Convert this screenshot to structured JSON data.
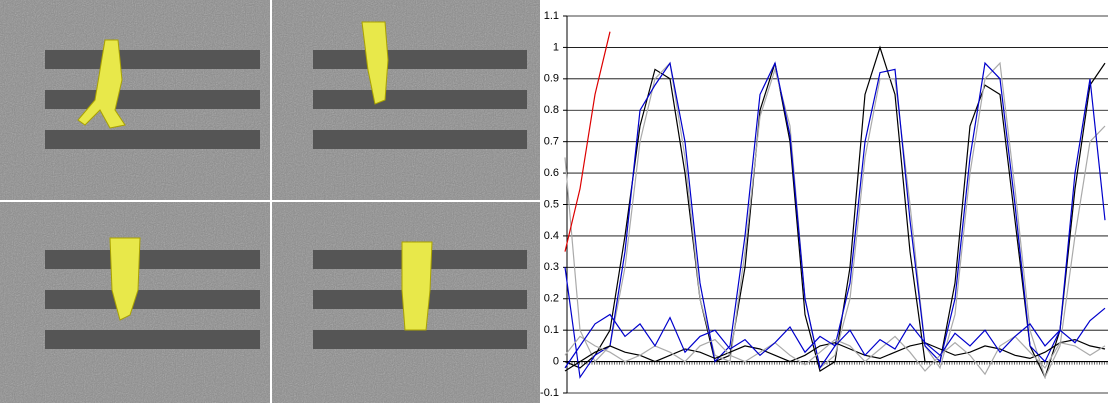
{
  "chart_data": {
    "type": "line",
    "ylim": [
      -0.1,
      1.1
    ],
    "yticks": [
      -0.1,
      0,
      0.1,
      0.2,
      0.3,
      0.4,
      0.5,
      0.6,
      0.7,
      0.8,
      0.9,
      1,
      1.1
    ],
    "grid": true,
    "series": [
      {
        "color": "#000000",
        "values": [
          0.0,
          -0.02,
          0.02,
          0.1,
          0.4,
          0.75,
          0.93,
          0.9,
          0.6,
          0.2,
          0.0,
          0.02,
          0.3,
          0.8,
          0.95,
          0.7,
          0.15,
          -0.03,
          0.0,
          0.3,
          0.85,
          1.0,
          0.85,
          0.35,
          0.0,
          0.0,
          0.25,
          0.75,
          0.88,
          0.85,
          0.45,
          0.05,
          -0.05,
          0.1,
          0.55,
          0.88,
          0.95
        ]
      },
      {
        "color": "#aaaaaa",
        "values": [
          0.65,
          0.1,
          0.0,
          0.05,
          0.3,
          0.7,
          0.9,
          0.95,
          0.65,
          0.2,
          0.02,
          0.0,
          0.35,
          0.78,
          0.93,
          0.75,
          0.2,
          -0.02,
          0.02,
          0.2,
          0.65,
          0.9,
          0.9,
          0.5,
          0.05,
          -0.02,
          0.15,
          0.6,
          0.9,
          0.95,
          0.55,
          0.1,
          -0.05,
          0.05,
          0.4,
          0.7,
          0.75
        ]
      },
      {
        "color": "#0000cc",
        "values": [
          0.3,
          -0.05,
          0.02,
          0.05,
          0.35,
          0.8,
          0.88,
          0.95,
          0.7,
          0.25,
          0.0,
          0.05,
          0.4,
          0.85,
          0.95,
          0.72,
          0.2,
          -0.02,
          0.05,
          0.25,
          0.7,
          0.92,
          0.93,
          0.45,
          0.05,
          0.0,
          0.2,
          0.65,
          0.95,
          0.9,
          0.5,
          0.05,
          0.0,
          0.1,
          0.6,
          0.9,
          0.45
        ]
      },
      {
        "color": "#000000",
        "values": [
          -0.03,
          0.0,
          0.03,
          0.05,
          0.03,
          0.02,
          0.0,
          0.02,
          0.04,
          0.03,
          0.01,
          0.03,
          0.05,
          0.04,
          0.02,
          0.0,
          0.02,
          0.05,
          0.06,
          0.04,
          0.02,
          0.01,
          0.03,
          0.05,
          0.06,
          0.04,
          0.02,
          0.03,
          0.05,
          0.04,
          0.02,
          0.01,
          0.03,
          0.06,
          0.07,
          0.05,
          0.04
        ]
      },
      {
        "color": "#aaaaaa",
        "values": [
          0.02,
          0.08,
          0.05,
          0.03,
          0.0,
          0.02,
          0.05,
          0.03,
          0.0,
          0.05,
          0.07,
          0.02,
          0.0,
          0.03,
          0.06,
          0.02,
          -0.01,
          0.03,
          0.07,
          0.05,
          0.0,
          0.04,
          0.08,
          0.03,
          -0.03,
          0.02,
          0.06,
          0.02,
          -0.04,
          0.05,
          0.08,
          0.03,
          -0.02,
          0.06,
          0.05,
          0.02,
          0.05
        ]
      },
      {
        "color": "#0000cc",
        "values": [
          -0.02,
          0.05,
          0.12,
          0.15,
          0.08,
          0.12,
          0.05,
          0.14,
          0.03,
          0.08,
          0.1,
          0.04,
          0.07,
          0.02,
          0.06,
          0.11,
          0.03,
          0.08,
          0.05,
          0.1,
          0.02,
          0.07,
          0.04,
          0.12,
          0.06,
          0.02,
          0.09,
          0.05,
          0.1,
          0.03,
          0.08,
          0.12,
          0.05,
          0.1,
          0.06,
          0.13,
          0.17
        ]
      },
      {
        "color": "#dd0000",
        "values": [
          0.35,
          0.55,
          0.85,
          1.05,
          null,
          null,
          null,
          null,
          null,
          null,
          null,
          null,
          null,
          null,
          null,
          null,
          null,
          null,
          null,
          null,
          null,
          null,
          null,
          null,
          null,
          null,
          null,
          null,
          null,
          null,
          null,
          null,
          null,
          null,
          null,
          null,
          null
        ]
      }
    ]
  }
}
